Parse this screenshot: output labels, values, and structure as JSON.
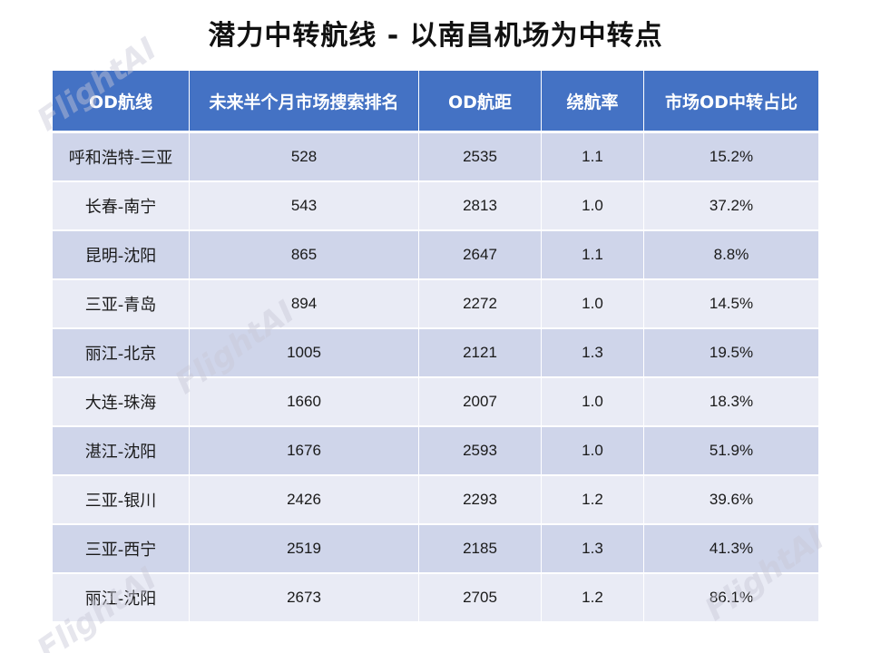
{
  "title": "潜力中转航线 - 以南昌机场为中转点",
  "watermark": "FlightAI",
  "table": {
    "headers": [
      "OD航线",
      "未来半个月市场搜索排名",
      "OD航距",
      "绕航率",
      "市场OD中转占比"
    ],
    "rows": [
      [
        "呼和浩特-三亚",
        "528",
        "2535",
        "1.1",
        "15.2%"
      ],
      [
        "长春-南宁",
        "543",
        "2813",
        "1.0",
        "37.2%"
      ],
      [
        "昆明-沈阳",
        "865",
        "2647",
        "1.1",
        "8.8%"
      ],
      [
        "三亚-青岛",
        "894",
        "2272",
        "1.0",
        "14.5%"
      ],
      [
        "丽江-北京",
        "1005",
        "2121",
        "1.3",
        "19.5%"
      ],
      [
        "大连-珠海",
        "1660",
        "2007",
        "1.0",
        "18.3%"
      ],
      [
        "湛江-沈阳",
        "1676",
        "2593",
        "1.0",
        "51.9%"
      ],
      [
        "三亚-银川",
        "2426",
        "2293",
        "1.2",
        "39.6%"
      ],
      [
        "三亚-西宁",
        "2519",
        "2185",
        "1.3",
        "41.3%"
      ],
      [
        "丽江-沈阳",
        "2673",
        "2705",
        "1.2",
        "86.1%"
      ]
    ]
  },
  "colors": {
    "header_bg": "#4472c4",
    "row_odd_bg": "#cfd5ea",
    "row_even_bg": "#e9ebf5"
  }
}
